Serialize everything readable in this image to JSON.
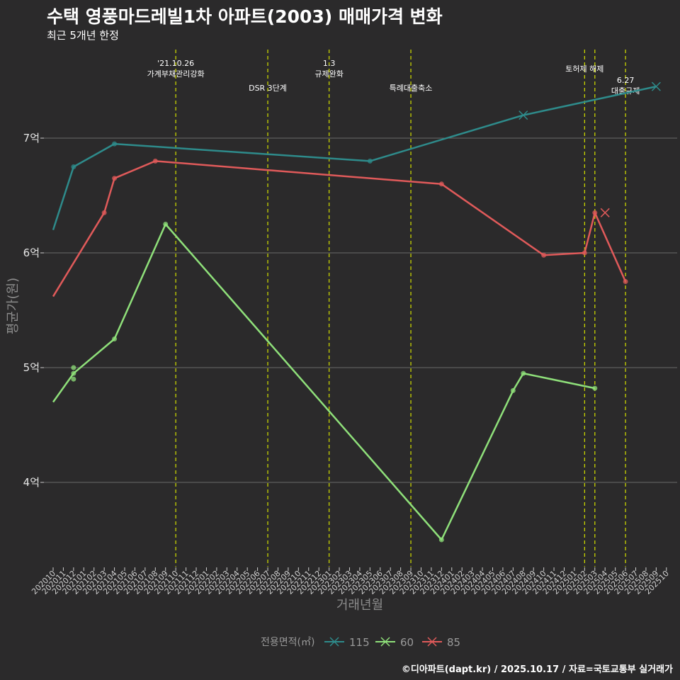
{
  "title": "수택 영풍마드레빌1차 아파트(2003) 매매가격 변화",
  "subtitle": "최근 5개년 한정",
  "caption": "©디아파트(dapt.kr) / 2025.10.17 / 자료=국토교통부 실거래가",
  "chart_data": {
    "type": "line",
    "title": "수택 영풍마드레빌1차 아파트(2003) 매매가격 변화",
    "xlabel": "거래년월",
    "ylabel": "평균가(원)",
    "ylim": [
      3.4,
      7.85
    ],
    "yticks": [
      4,
      5,
      6,
      7
    ],
    "ytick_labels": [
      "4억",
      "5억",
      "6억",
      "7억"
    ],
    "x_categories": [
      "202010",
      "202011",
      "202012",
      "202101",
      "202102",
      "202103",
      "202104",
      "202105",
      "202106",
      "202107",
      "202108",
      "202109",
      "202110",
      "202111",
      "202112",
      "202201",
      "202202",
      "202203",
      "202204",
      "202205",
      "202206",
      "202207",
      "202208",
      "202209",
      "202210",
      "202211",
      "202212",
      "202301",
      "202302",
      "202303",
      "202304",
      "202305",
      "202306",
      "202307",
      "202308",
      "202309",
      "202310",
      "202311",
      "202312",
      "202401",
      "202402",
      "202403",
      "202404",
      "202405",
      "202406",
      "202407",
      "202408",
      "202409",
      "202410",
      "202411",
      "202412",
      "202501",
      "202502",
      "202503",
      "202504",
      "202505",
      "202506",
      "202507",
      "202508",
      "202509",
      "202510"
    ],
    "legend_title": "전용면적(㎡)",
    "series": [
      {
        "name": "115",
        "color": "#2e8b8b",
        "points": [
          [
            "202010",
            6.2
          ],
          [
            "202012",
            6.75
          ],
          [
            "202104",
            6.95
          ],
          [
            "202305",
            6.8
          ],
          [
            "202408",
            7.2
          ],
          [
            "202509",
            7.45
          ]
        ],
        "markers": [
          "202012",
          "202104",
          "202305"
        ],
        "x_markers": [
          "202408",
          "202509"
        ]
      },
      {
        "name": "60",
        "color": "#8fe07a",
        "points": [
          [
            "202010",
            4.7
          ],
          [
            "202012",
            4.95
          ],
          [
            "202104",
            5.25
          ],
          [
            "202109",
            6.25
          ],
          [
            "202312",
            3.5
          ],
          [
            "202407",
            4.8
          ],
          [
            "202408",
            4.95
          ],
          [
            "202503",
            4.82
          ]
        ],
        "markers": [
          "202012",
          "202104",
          "202109",
          "202312",
          "202407",
          "202408",
          "202503"
        ],
        "extra_points": [
          [
            "202012",
            5.0
          ],
          [
            "202012",
            4.9
          ]
        ],
        "x_markers": []
      },
      {
        "name": "85",
        "color": "#e05a5a",
        "points": [
          [
            "202010",
            5.62
          ],
          [
            "202103",
            6.35
          ],
          [
            "202104",
            6.65
          ],
          [
            "202108",
            6.8
          ],
          [
            "202312",
            6.6
          ],
          [
            "202410",
            5.98
          ],
          [
            "202502",
            6.0
          ],
          [
            "202503",
            6.35
          ],
          [
            "202506",
            5.75
          ]
        ],
        "markers": [
          "202103",
          "202104",
          "202108",
          "202312",
          "202410",
          "202502",
          "202503",
          "202506"
        ],
        "x_markers": [
          "202504"
        ],
        "x_marker_values": [
          6.35
        ]
      }
    ],
    "events": [
      {
        "x": "202110",
        "label": [
          "'21.10.26",
          "가계부채관리강화"
        ],
        "level": "top"
      },
      {
        "x": "202207",
        "label": [
          "DSR 3단계"
        ],
        "level": "mid"
      },
      {
        "x": "202301",
        "label": [
          "1.3",
          "규제완화"
        ],
        "level": "top"
      },
      {
        "x": "202309",
        "label": [
          "특례대출축소"
        ],
        "level": "mid"
      },
      {
        "x": "202502",
        "label": [
          "토허제 해제"
        ],
        "level": "upper"
      },
      {
        "x": "202503",
        "label": [],
        "level": "none"
      },
      {
        "x": "202506",
        "label": [
          "6.27",
          "대출규제"
        ],
        "level": "low"
      }
    ]
  }
}
